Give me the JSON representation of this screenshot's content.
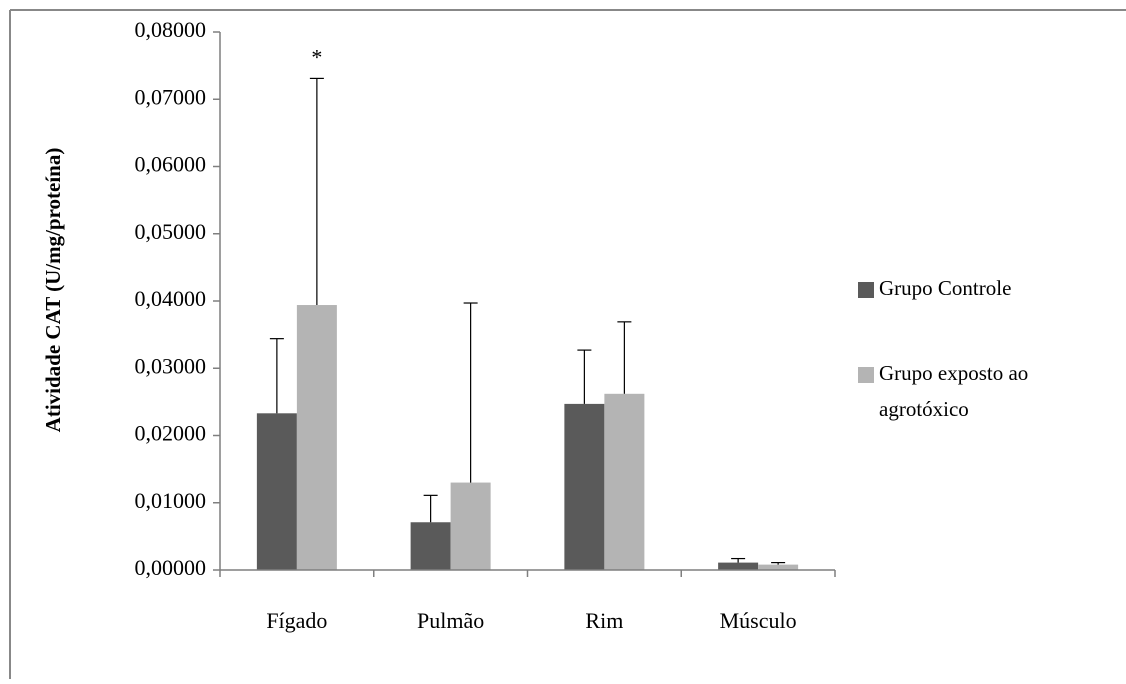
{
  "chart_data": {
    "type": "bar",
    "title": "",
    "xlabel": "",
    "ylabel": "Atividade CAT (U/mg/proteína)",
    "ylim": [
      0,
      0.08
    ],
    "yticks": [
      "0,00000",
      "0,01000",
      "0,02000",
      "0,03000",
      "0,04000",
      "0,05000",
      "0,06000",
      "0,07000",
      "0,08000"
    ],
    "ytick_values": [
      0,
      0.01,
      0.02,
      0.03,
      0.04,
      0.05,
      0.06,
      0.07,
      0.08
    ],
    "categories": [
      "Fígado",
      "Pulmão",
      "Rim",
      "Músculo"
    ],
    "series": [
      {
        "name": "Grupo Controle",
        "color": "#5a5a5a",
        "values": [
          0.0233,
          0.0071,
          0.0247,
          0.0011
        ],
        "errors": [
          0.0111,
          0.004,
          0.008,
          0.0006
        ]
      },
      {
        "name": "Grupo exposto ao agrotóxico",
        "name_lines": [
          "Grupo exposto ao",
          "agrotóxico"
        ],
        "color": "#b4b4b4",
        "values": [
          0.0394,
          0.013,
          0.0262,
          0.0008
        ],
        "errors": [
          0.0337,
          0.0267,
          0.0107,
          0.0003
        ]
      }
    ],
    "annotations": [
      {
        "text": "*",
        "category": "Fígado",
        "series": 1
      }
    ],
    "grid": false,
    "legend": "right"
  }
}
